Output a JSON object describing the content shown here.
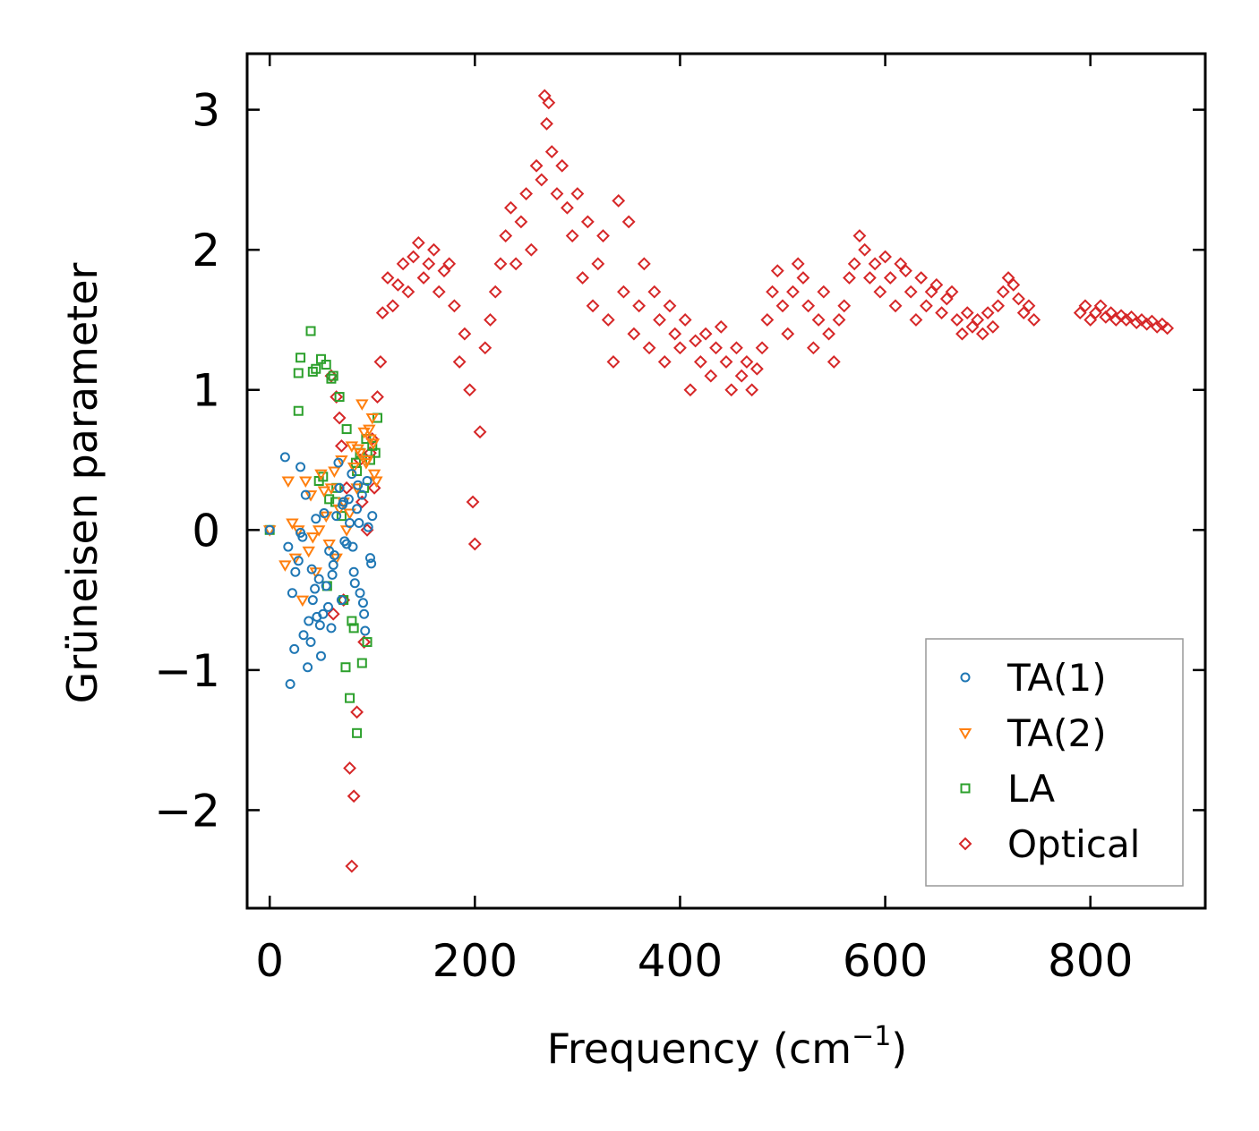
{
  "chart_data": {
    "type": "scatter",
    "title": "",
    "xlabel": "Frequency (cm",
    "xlabel_superscript": "−1",
    "xlabel_suffix": ")",
    "ylabel": "Grüneisen parameter",
    "xlim": [
      -22,
      912
    ],
    "ylim": [
      -2.7,
      3.4
    ],
    "xticks": [
      0,
      200,
      400,
      600,
      800
    ],
    "xtick_labels": [
      "0",
      "200",
      "400",
      "600",
      "800"
    ],
    "yticks": [
      -2,
      -1,
      0,
      1,
      2,
      3
    ],
    "ytick_labels": [
      "−2",
      "−1",
      "0",
      "1",
      "2",
      "3"
    ],
    "grid": false,
    "legend_position": "bottom-right",
    "series": [
      {
        "name": "TA(1)",
        "marker": "circle",
        "color": "#1f77b4",
        "x": [
          0,
          15,
          18,
          22,
          25,
          28,
          30,
          32,
          35,
          38,
          40,
          42,
          45,
          48,
          50,
          52,
          55,
          58,
          60,
          62,
          65,
          68,
          70,
          72,
          75,
          78,
          80,
          82,
          85,
          88,
          90,
          92,
          95,
          98,
          100,
          20,
          24,
          33,
          37,
          41,
          46,
          53,
          57,
          63,
          67,
          73,
          77,
          83,
          87,
          93,
          30,
          44,
          49,
          61,
          71,
          81,
          86,
          91,
          96,
          99
        ],
        "y": [
          0.0,
          0.52,
          -0.12,
          -0.45,
          -0.3,
          -0.22,
          0.45,
          -0.05,
          0.25,
          -0.65,
          -0.8,
          -0.5,
          0.08,
          -0.35,
          -0.9,
          -0.6,
          -0.4,
          -0.15,
          -0.7,
          -0.25,
          0.1,
          0.3,
          -0.5,
          0.2,
          -0.1,
          0.05,
          0.4,
          -0.3,
          0.15,
          -0.45,
          0.25,
          -0.6,
          0.35,
          -0.2,
          0.1,
          -1.1,
          -0.85,
          -0.75,
          -0.98,
          -0.28,
          -0.62,
          0.12,
          -0.55,
          -0.18,
          0.48,
          -0.08,
          0.22,
          -0.38,
          0.05,
          -0.72,
          -0.02,
          -0.42,
          -0.68,
          -0.32,
          0.18,
          -0.12,
          0.32,
          -0.52,
          0.02,
          -0.24
        ]
      },
      {
        "name": "TA(2)",
        "marker": "triangle-down",
        "color": "#ff7f0e",
        "x": [
          0,
          18,
          22,
          25,
          28,
          32,
          35,
          38,
          40,
          45,
          48,
          50,
          55,
          58,
          60,
          65,
          68,
          70,
          72,
          75,
          80,
          82,
          85,
          88,
          90,
          92,
          95,
          98,
          100,
          102,
          15,
          42,
          53,
          63,
          78,
          86,
          94,
          97,
          101,
          104
        ],
        "y": [
          0.0,
          0.35,
          0.05,
          -0.2,
          0.0,
          -0.5,
          0.35,
          -0.15,
          0.25,
          -0.3,
          0.0,
          0.4,
          0.1,
          -0.1,
          0.3,
          -0.2,
          0.15,
          0.5,
          0.2,
          0.0,
          0.6,
          0.45,
          0.3,
          0.55,
          0.9,
          0.7,
          0.5,
          0.65,
          0.8,
          0.4,
          -0.25,
          -0.05,
          0.28,
          0.42,
          0.12,
          0.58,
          0.48,
          0.72,
          0.62,
          0.35
        ]
      },
      {
        "name": "LA",
        "marker": "square",
        "color": "#2ca02c",
        "x": [
          0,
          28,
          30,
          28,
          40,
          42,
          45,
          50,
          55,
          60,
          62,
          68,
          75,
          80,
          85,
          90,
          95,
          100,
          105,
          78,
          82,
          88,
          72,
          65,
          52,
          58,
          70,
          85,
          92,
          98,
          48,
          56,
          64,
          74,
          84,
          94,
          103
        ],
        "y": [
          0.0,
          0.85,
          1.23,
          1.12,
          1.42,
          1.13,
          1.15,
          1.22,
          1.18,
          1.08,
          1.1,
          0.95,
          0.72,
          -0.65,
          -1.45,
          -0.95,
          -0.8,
          0.6,
          0.8,
          -1.2,
          -0.7,
          0.55,
          -0.5,
          0.3,
          0.38,
          0.22,
          0.1,
          0.42,
          0.3,
          0.5,
          0.35,
          -0.4,
          0.2,
          -0.98,
          0.48,
          0.65,
          0.55
        ]
      },
      {
        "name": "Optical",
        "marker": "diamond",
        "color": "#d62728",
        "x": [
          60,
          62,
          65,
          68,
          70,
          72,
          75,
          78,
          80,
          82,
          85,
          88,
          90,
          92,
          95,
          98,
          100,
          102,
          105,
          108,
          110,
          115,
          120,
          125,
          130,
          135,
          140,
          145,
          150,
          155,
          160,
          165,
          170,
          175,
          180,
          185,
          190,
          195,
          198,
          200,
          205,
          210,
          215,
          220,
          225,
          230,
          235,
          240,
          245,
          250,
          255,
          260,
          265,
          268,
          270,
          272,
          275,
          280,
          285,
          290,
          295,
          300,
          305,
          310,
          315,
          320,
          325,
          330,
          335,
          340,
          345,
          350,
          355,
          360,
          365,
          370,
          375,
          380,
          385,
          390,
          395,
          400,
          405,
          410,
          415,
          420,
          425,
          430,
          435,
          440,
          445,
          450,
          455,
          460,
          465,
          470,
          475,
          480,
          485,
          490,
          495,
          500,
          505,
          510,
          515,
          520,
          525,
          530,
          535,
          540,
          545,
          550,
          555,
          560,
          565,
          570,
          575,
          580,
          585,
          590,
          595,
          600,
          605,
          610,
          615,
          620,
          625,
          630,
          635,
          640,
          645,
          650,
          655,
          660,
          665,
          670,
          675,
          680,
          685,
          690,
          695,
          700,
          705,
          710,
          715,
          720,
          725,
          730,
          735,
          740,
          745,
          790,
          795,
          800,
          805,
          810,
          815,
          820,
          825,
          830,
          835,
          840,
          845,
          850,
          855,
          860,
          865,
          870,
          875
        ],
        "y": [
          1.1,
          -0.6,
          0.95,
          0.8,
          0.6,
          -0.5,
          0.3,
          -1.7,
          -2.4,
          -1.9,
          -1.3,
          0.5,
          0.2,
          -0.8,
          0.0,
          0.55,
          0.65,
          0.3,
          0.95,
          1.2,
          1.55,
          1.8,
          1.6,
          1.75,
          1.9,
          1.7,
          1.95,
          2.05,
          1.8,
          1.9,
          2.0,
          1.7,
          1.85,
          1.9,
          1.6,
          1.2,
          1.4,
          1.0,
          0.2,
          -0.1,
          0.7,
          1.3,
          1.5,
          1.7,
          1.9,
          2.1,
          2.3,
          1.9,
          2.2,
          2.4,
          2.0,
          2.6,
          2.5,
          3.1,
          2.9,
          3.05,
          2.7,
          2.4,
          2.6,
          2.3,
          2.1,
          2.4,
          1.8,
          2.2,
          1.6,
          1.9,
          2.1,
          1.5,
          1.2,
          2.35,
          1.7,
          2.2,
          1.4,
          1.6,
          1.9,
          1.3,
          1.7,
          1.5,
          1.2,
          1.6,
          1.4,
          1.3,
          1.5,
          1.0,
          1.35,
          1.2,
          1.4,
          1.1,
          1.3,
          1.45,
          1.2,
          1.0,
          1.3,
          1.1,
          1.2,
          1.0,
          1.15,
          1.3,
          1.5,
          1.7,
          1.85,
          1.6,
          1.4,
          1.7,
          1.9,
          1.8,
          1.6,
          1.3,
          1.5,
          1.7,
          1.4,
          1.2,
          1.5,
          1.6,
          1.8,
          1.9,
          2.1,
          2.0,
          1.8,
          1.9,
          1.7,
          1.95,
          1.8,
          1.6,
          1.9,
          1.85,
          1.7,
          1.5,
          1.8,
          1.6,
          1.7,
          1.75,
          1.55,
          1.65,
          1.7,
          1.5,
          1.4,
          1.55,
          1.45,
          1.5,
          1.4,
          1.55,
          1.45,
          1.6,
          1.7,
          1.8,
          1.75,
          1.65,
          1.55,
          1.6,
          1.5,
          1.55,
          1.6,
          1.5,
          1.55,
          1.6,
          1.52,
          1.55,
          1.5,
          1.53,
          1.5,
          1.52,
          1.48,
          1.5,
          1.47,
          1.49,
          1.45,
          1.47,
          1.44
        ]
      }
    ]
  }
}
